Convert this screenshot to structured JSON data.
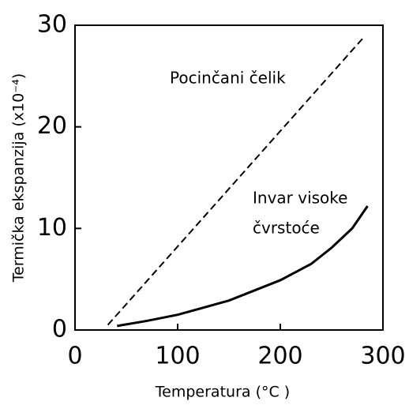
{
  "chart_data": {
    "type": "line",
    "xlabel": "Temperatura (°C )",
    "ylabel": "Termička ekspanzija (x10⁻⁴)",
    "annotations": [
      "Pocinčani čelik",
      "Invar visoke",
      "čvrstoće"
    ],
    "series": [
      {
        "style": "dashed",
        "color": "#000000",
        "x": [
          32,
          282
        ],
        "values": [
          0.5,
          28.9
        ]
      },
      {
        "style": "solid",
        "color": "#000000",
        "x": [
          41,
          70,
          100,
          150,
          200,
          230,
          250,
          270,
          285
        ],
        "values": [
          0.4,
          0.9,
          1.5,
          2.9,
          4.9,
          6.5,
          8.1,
          10.0,
          12.2
        ]
      }
    ],
    "xlim": [
      0,
      300
    ],
    "xticks": [
      0,
      100,
      200,
      300
    ],
    "ylim": [
      0,
      30
    ],
    "yticks": [
      0,
      10,
      20,
      30
    ]
  }
}
